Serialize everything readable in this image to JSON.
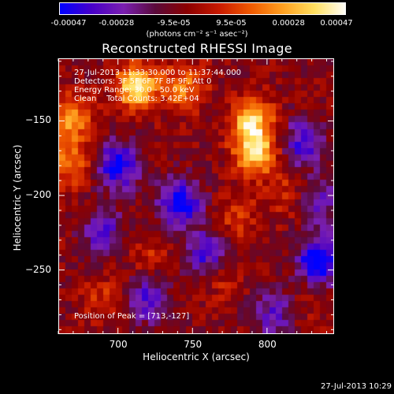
{
  "colorbar": {
    "tick_labels": [
      "-0.00047",
      "-0.00028",
      "-9.5e-05",
      "9.5e-05",
      "0.00028",
      "0.00047"
    ],
    "unit_text": "(photons cm⁻² s⁻¹ asec⁻²)",
    "colors": [
      "#0000ff",
      "#4800c8",
      "#7a1fb0",
      "#5a0a3a",
      "#8c0000",
      "#c81a00",
      "#f05a00",
      "#ffa020",
      "#ffe060",
      "#ffffff"
    ]
  },
  "chart_data": {
    "type": "heatmap",
    "title": "Reconstructed RHESSI Image",
    "xlabel": "Heliocentric X (arcsec)",
    "ylabel": "Heliocentric Y (arcsec)",
    "xlim": [
      660,
      845
    ],
    "ylim": [
      -293,
      -108
    ],
    "x_ticks": [
      700,
      750,
      800
    ],
    "y_ticks": [
      -150,
      -200,
      -250
    ],
    "zlim": [
      -0.00047,
      0.00047
    ],
    "bright_sources": [
      {
        "x": 713,
        "y": -127,
        "level": 1.0
      },
      {
        "x": 790,
        "y": -150,
        "level": 0.9
      },
      {
        "x": 793,
        "y": -172,
        "level": 0.85
      },
      {
        "x": 668,
        "y": -148,
        "level": 0.7
      },
      {
        "x": 668,
        "y": -178,
        "level": 0.55
      },
      {
        "x": 745,
        "y": -127,
        "level": 0.6
      },
      {
        "x": 815,
        "y": -200,
        "level": 0.3
      },
      {
        "x": 780,
        "y": -215,
        "level": 0.35
      },
      {
        "x": 720,
        "y": -240,
        "level": 0.25
      },
      {
        "x": 770,
        "y": -255,
        "level": 0.3
      },
      {
        "x": 690,
        "y": -270,
        "level": 0.3
      },
      {
        "x": 830,
        "y": -270,
        "level": 0.2
      }
    ],
    "dark_sources": [
      {
        "x": 700,
        "y": -180,
        "level": -0.85
      },
      {
        "x": 742,
        "y": -205,
        "level": -0.9
      },
      {
        "x": 760,
        "y": -240,
        "level": -0.7
      },
      {
        "x": 835,
        "y": -245,
        "level": -1.0
      },
      {
        "x": 825,
        "y": -165,
        "level": -0.65
      },
      {
        "x": 720,
        "y": -270,
        "level": -0.6
      },
      {
        "x": 690,
        "y": -225,
        "level": -0.55
      },
      {
        "x": 805,
        "y": -280,
        "level": -0.5
      },
      {
        "x": 835,
        "y": -205,
        "level": -0.5
      }
    ]
  },
  "info": {
    "time_range": "27-Jul-2013 11:33:30.000 to 11:37:44.000",
    "detectors": "Detectors: 3F 5F 6F 7F 8F 9F, Att 0",
    "energy": "Energy Range: 30.0 - 50.0 keV",
    "clean": "Clean    Total Counts: 3.42E+04",
    "peak": "Position of Peak = [713,-127]"
  },
  "footer": {
    "timestamp": "27-Jul-2013 10:29"
  }
}
